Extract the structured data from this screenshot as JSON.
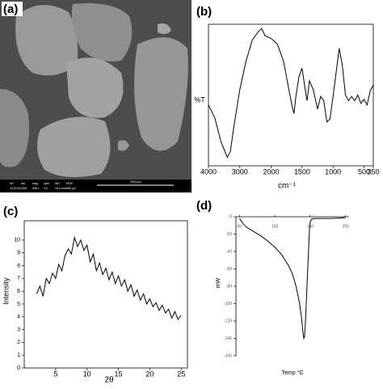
{
  "image": {
    "label": "(a)",
    "info": [
      [
        "HV",
        "15.00 kV"
      ],
      [
        "det",
        "CBS"
      ],
      [
        "mag",
        "396 x"
      ],
      [
        "spot",
        "4.0"
      ],
      [
        "WD",
        "10.0 mm"
      ],
      [
        "HFW",
        "696 µm"
      ]
    ],
    "scale": "300 µm"
  },
  "chart_data": [
    {
      "type": "line",
      "panel_label": "(b)",
      "xlabel": "cm⁻¹",
      "ylabel": "%T",
      "xlim": [
        4000,
        350
      ],
      "xticks": [
        4000,
        3000,
        2000,
        1500,
        1000,
        500,
        350
      ],
      "ylim": [
        0,
        100
      ],
      "x": [
        4000,
        3800,
        3600,
        3400,
        3300,
        3200,
        3000,
        2800,
        2600,
        2400,
        2300,
        2200,
        2100,
        2000,
        1900,
        1800,
        1700,
        1650,
        1630,
        1600,
        1550,
        1500,
        1450,
        1420,
        1380,
        1320,
        1250,
        1200,
        1150,
        1100,
        1050,
        1000,
        950,
        900,
        850,
        800,
        750,
        700,
        650,
        600,
        550,
        500,
        450,
        400,
        350
      ],
      "series": [
        {
          "color": "#000000",
          "values": [
            43,
            34,
            17,
            6,
            10,
            26,
            54,
            74,
            89,
            95,
            97,
            92,
            91,
            90,
            86,
            74,
            51,
            40,
            37,
            49,
            63,
            69,
            54,
            46,
            60,
            54,
            40,
            49,
            46,
            31,
            33,
            49,
            66,
            83,
            71,
            50,
            46,
            49,
            46,
            50,
            44,
            47,
            43,
            53,
            57
          ]
        }
      ]
    },
    {
      "type": "line",
      "panel_label": "(c)",
      "xlabel": "2θ",
      "ylabel": "Intensity",
      "xlim": [
        0,
        26
      ],
      "xticks": [
        5,
        10,
        15,
        20,
        25
      ],
      "ylim": [
        0,
        11
      ],
      "yticks": [
        0,
        1,
        2,
        3,
        4,
        5,
        6,
        7,
        8,
        9,
        10
      ],
      "x": [
        2,
        2.5,
        3,
        3.5,
        4,
        4.5,
        5,
        5.5,
        6,
        6.5,
        7,
        7.5,
        8,
        8.5,
        9,
        9.5,
        10,
        10.5,
        11,
        11.5,
        12,
        12.5,
        13,
        13.5,
        14,
        14.5,
        15,
        15.5,
        16,
        16.5,
        17,
        17.5,
        18,
        18.5,
        19,
        19.5,
        20,
        20.5,
        21,
        21.5,
        22,
        22.5,
        23,
        23.5,
        24,
        24.5,
        25
      ],
      "series": [
        {
          "color": "#000000",
          "values": [
            5.8,
            6.4,
            5.6,
            7.0,
            6.6,
            7.4,
            7.0,
            8.1,
            7.6,
            8.8,
            9.3,
            8.9,
            10.2,
            9.5,
            10.0,
            9.2,
            9.6,
            8.3,
            8.9,
            7.6,
            8.2,
            7.3,
            7.8,
            6.9,
            7.5,
            6.6,
            7.2,
            6.4,
            6.9,
            6.0,
            6.5,
            5.6,
            6.1,
            5.3,
            5.8,
            5.0,
            5.4,
            4.8,
            5.1,
            4.5,
            4.9,
            4.3,
            4.6,
            3.9,
            4.4,
            3.8,
            4.1
          ]
        }
      ]
    },
    {
      "type": "line",
      "panel_label": "(d)",
      "xlabel": "Temp °C",
      "ylabel": "mW",
      "xlim": [
        45,
        205
      ],
      "xticks": [
        50,
        100,
        150,
        200
      ],
      "ylim": [
        -160,
        0
      ],
      "yticks": [
        0,
        -20,
        -40,
        -60,
        -80,
        -100,
        -120,
        -140,
        -160
      ],
      "x": [
        50,
        55,
        60,
        70,
        80,
        90,
        100,
        110,
        120,
        125,
        130,
        135,
        138,
        140,
        141,
        142,
        143,
        145,
        147,
        149,
        150,
        152,
        155,
        160,
        180,
        200
      ],
      "series": [
        {
          "color": "#000000",
          "values": [
            -2,
            -8,
            -12,
            -17,
            -22,
            -28,
            -35,
            -44,
            -57,
            -66,
            -80,
            -100,
            -118,
            -134,
            -140,
            -138,
            -125,
            -90,
            -50,
            -15,
            -6,
            -3,
            -2,
            -2,
            -2,
            -1
          ]
        }
      ]
    }
  ]
}
